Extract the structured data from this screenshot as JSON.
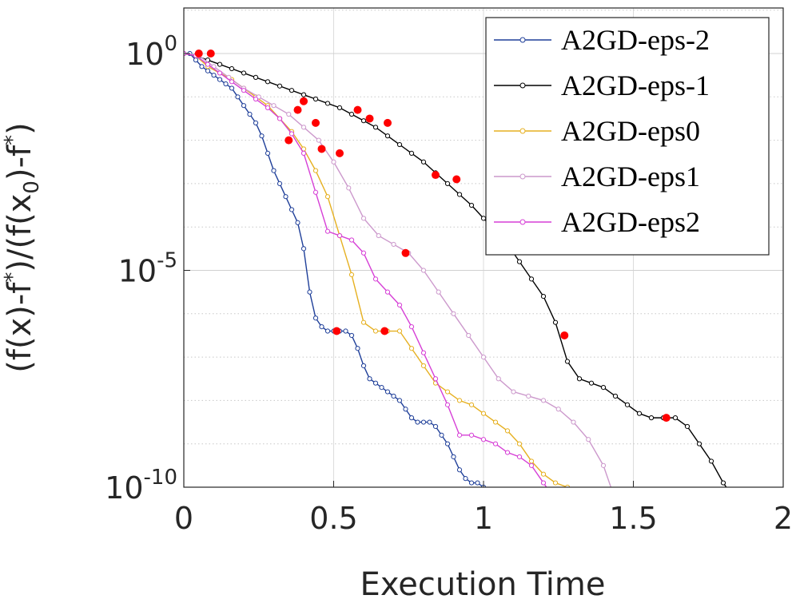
{
  "chart_data": {
    "type": "line",
    "title": "",
    "xlabel": "Execution Time",
    "ylabel": "(f(x)-f*)/(f(x0)-f*)",
    "ylabel_parts": {
      "a": "(f(x)-f",
      "b": "*",
      "c": ")/(f(x",
      "d": "0",
      "e": ")-f",
      "f": "*",
      "g": ")"
    },
    "xlim": [
      0,
      2
    ],
    "ylim_log10": [
      -10,
      1.05
    ],
    "yscale": "log",
    "grid": true,
    "legend_position": "top-right",
    "x_ticks": [
      "0",
      "0.5",
      "1",
      "1.5",
      "2"
    ],
    "x_tick_values": [
      0,
      0.5,
      1,
      1.5,
      2
    ],
    "y_ticks": [
      {
        "exp": -10,
        "base": "10",
        "sup": "-10"
      },
      {
        "exp": -5,
        "base": "10",
        "sup": "-5"
      },
      {
        "exp": 0,
        "base": "10",
        "sup": "0"
      }
    ],
    "series": [
      {
        "name": "A2GD-eps-2",
        "color": "#1f3f99",
        "x": [
          0.0,
          0.02,
          0.04,
          0.06,
          0.08,
          0.1,
          0.12,
          0.14,
          0.16,
          0.18,
          0.2,
          0.22,
          0.24,
          0.26,
          0.28,
          0.3,
          0.32,
          0.34,
          0.36,
          0.38,
          0.4,
          0.42,
          0.44,
          0.46,
          0.48,
          0.5,
          0.52,
          0.54,
          0.56,
          0.58,
          0.6,
          0.62,
          0.64,
          0.66,
          0.68,
          0.7,
          0.72,
          0.74,
          0.76,
          0.78,
          0.8,
          0.82,
          0.84,
          0.86,
          0.88,
          0.9,
          0.92,
          0.94,
          0.96,
          0.98,
          1.0,
          1.01
        ],
        "y_log10": [
          0.0,
          0.0,
          -0.15,
          -0.3,
          -0.4,
          -0.5,
          -0.6,
          -0.7,
          -0.8,
          -1.0,
          -1.2,
          -1.4,
          -1.6,
          -1.9,
          -2.3,
          -2.7,
          -3.0,
          -3.3,
          -3.6,
          -3.9,
          -4.5,
          -5.5,
          -6.1,
          -6.3,
          -6.4,
          -6.4,
          -6.4,
          -6.4,
          -6.5,
          -6.8,
          -7.2,
          -7.5,
          -7.6,
          -7.7,
          -7.8,
          -7.9,
          -8.0,
          -8.2,
          -8.4,
          -8.5,
          -8.5,
          -8.5,
          -8.6,
          -8.8,
          -9.0,
          -9.3,
          -9.6,
          -9.8,
          -9.9,
          -9.9,
          -10.0,
          -10.2
        ],
        "markers_log10_at": [
          0.51
        ],
        "markers_y_log10": [
          -6.4
        ]
      },
      {
        "name": "A2GD-eps-1",
        "color": "#000000",
        "x": [
          0.0,
          0.04,
          0.08,
          0.12,
          0.16,
          0.2,
          0.24,
          0.28,
          0.32,
          0.36,
          0.4,
          0.44,
          0.48,
          0.52,
          0.56,
          0.6,
          0.64,
          0.68,
          0.72,
          0.76,
          0.8,
          0.84,
          0.88,
          0.92,
          0.96,
          1.0,
          1.04,
          1.08,
          1.12,
          1.16,
          1.2,
          1.24,
          1.28,
          1.32,
          1.36,
          1.4,
          1.44,
          1.48,
          1.52,
          1.56,
          1.6,
          1.64,
          1.68,
          1.72,
          1.76,
          1.8,
          1.82
        ],
        "y_log10": [
          0.0,
          -0.05,
          -0.15,
          -0.25,
          -0.35,
          -0.45,
          -0.55,
          -0.65,
          -0.75,
          -0.85,
          -0.95,
          -1.05,
          -1.15,
          -1.25,
          -1.4,
          -1.55,
          -1.7,
          -1.9,
          -2.1,
          -2.3,
          -2.5,
          -2.75,
          -3.0,
          -3.25,
          -3.5,
          -3.8,
          -4.1,
          -4.4,
          -4.8,
          -5.2,
          -5.6,
          -6.2,
          -7.1,
          -7.5,
          -7.6,
          -7.7,
          -7.9,
          -8.1,
          -8.3,
          -8.4,
          -8.4,
          -8.4,
          -8.6,
          -9.0,
          -9.4,
          -9.9,
          -10.1
        ],
        "markers_log10_at": [
          0.58,
          0.84,
          1.27,
          1.61
        ],
        "markers_y_log10": [
          -1.3,
          -2.8,
          -6.5,
          -8.4
        ]
      },
      {
        "name": "A2GD-eps0",
        "color": "#e6b020",
        "x": [
          0.0,
          0.04,
          0.08,
          0.12,
          0.16,
          0.2,
          0.24,
          0.28,
          0.32,
          0.36,
          0.4,
          0.44,
          0.48,
          0.52,
          0.56,
          0.6,
          0.64,
          0.68,
          0.72,
          0.76,
          0.8,
          0.84,
          0.88,
          0.92,
          0.96,
          1.0,
          1.04,
          1.08,
          1.12,
          1.16,
          1.2,
          1.24,
          1.28,
          1.3
        ],
        "y_log10": [
          0.0,
          -0.05,
          -0.3,
          -0.45,
          -0.6,
          -0.8,
          -1.0,
          -1.2,
          -1.5,
          -1.8,
          -2.2,
          -2.7,
          -3.3,
          -4.2,
          -5.1,
          -6.2,
          -6.4,
          -6.4,
          -6.4,
          -6.8,
          -7.2,
          -7.6,
          -7.8,
          -8.0,
          -8.1,
          -8.3,
          -8.5,
          -8.7,
          -9.0,
          -9.4,
          -9.7,
          -9.9,
          -10.0,
          -10.3
        ],
        "markers_log10_at": [
          0.67
        ],
        "markers_y_log10": [
          -6.4
        ]
      },
      {
        "name": "A2GD-eps1",
        "color": "#cc99cc",
        "x": [
          0.0,
          0.05,
          0.1,
          0.15,
          0.2,
          0.25,
          0.3,
          0.35,
          0.4,
          0.45,
          0.5,
          0.55,
          0.6,
          0.65,
          0.7,
          0.75,
          0.8,
          0.85,
          0.9,
          0.95,
          1.0,
          1.05,
          1.1,
          1.15,
          1.2,
          1.25,
          1.3,
          1.35,
          1.4,
          1.44
        ],
        "y_log10": [
          0.0,
          -0.05,
          -0.3,
          -0.55,
          -0.8,
          -1.0,
          -1.2,
          -1.4,
          -1.7,
          -2.0,
          -2.5,
          -3.1,
          -3.8,
          -4.2,
          -4.4,
          -4.6,
          -5.0,
          -5.5,
          -6.0,
          -6.5,
          -7.0,
          -7.5,
          -7.8,
          -7.9,
          -8.0,
          -8.2,
          -8.5,
          -8.9,
          -9.5,
          -10.3
        ],
        "markers_log10_at": [
          0.74
        ],
        "markers_y_log10": [
          -4.6
        ]
      },
      {
        "name": "A2GD-eps2",
        "color": "#d63fd6",
        "x": [
          0.0,
          0.04,
          0.08,
          0.12,
          0.16,
          0.2,
          0.24,
          0.28,
          0.32,
          0.36,
          0.4,
          0.44,
          0.48,
          0.52,
          0.56,
          0.6,
          0.64,
          0.68,
          0.72,
          0.76,
          0.8,
          0.84,
          0.88,
          0.92,
          0.96,
          1.0,
          1.04,
          1.08,
          1.12,
          1.16,
          1.2,
          1.24
        ],
        "y_log10": [
          0.0,
          -0.05,
          -0.25,
          -0.45,
          -0.65,
          -0.85,
          -1.05,
          -1.25,
          -1.5,
          -1.85,
          -2.3,
          -3.2,
          -4.1,
          -4.2,
          -4.3,
          -4.6,
          -5.2,
          -5.5,
          -5.8,
          -6.3,
          -6.9,
          -7.5,
          -8.1,
          -8.8,
          -8.8,
          -8.9,
          -9.0,
          -9.2,
          -9.3,
          -9.5,
          -9.9,
          -10.3
        ],
        "markers_log10_at": [
          0.35,
          0.38,
          0.44,
          0.46,
          0.52
        ],
        "markers_y_log10": [
          -2.0,
          -1.3,
          -1.6,
          -2.2,
          -2.3
        ]
      }
    ],
    "extra_markers": {
      "color": "#ff0000",
      "x": [
        0.05,
        0.09,
        0.4,
        0.62,
        0.68,
        0.91
      ],
      "y_log10": [
        0.0,
        0.0,
        -1.1,
        -1.5,
        -1.6,
        -2.9
      ]
    }
  }
}
